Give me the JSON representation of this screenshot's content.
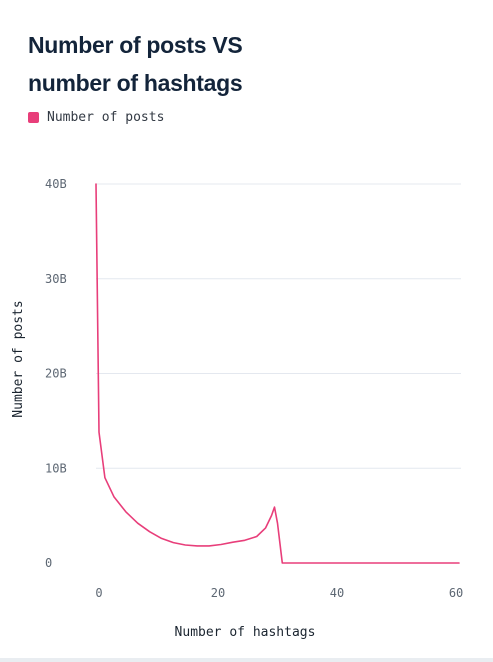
{
  "chart_data": {
    "type": "line",
    "title": "Number of posts VS number of hashtags",
    "xlabel": "Number of hashtags",
    "ylabel": "Number of posts",
    "xlim": [
      0,
      61
    ],
    "ylim": [
      0,
      40000000000
    ],
    "x_ticks": [
      {
        "value": 0,
        "label": "0"
      },
      {
        "value": 20,
        "label": "20"
      },
      {
        "value": 40,
        "label": "40"
      },
      {
        "value": 60,
        "label": "60"
      }
    ],
    "y_ticks": [
      {
        "value": 0,
        "label": "0"
      },
      {
        "value": 10000000000,
        "label": "10B"
      },
      {
        "value": 20000000000,
        "label": "20B"
      },
      {
        "value": 30000000000,
        "label": "30B"
      },
      {
        "value": 40000000000,
        "label": "40B"
      }
    ],
    "grid": true,
    "legend_position": "top-left",
    "series": [
      {
        "name": "Number of posts",
        "color": "#e83e7a",
        "points": [
          [
            0,
            40000000000
          ],
          [
            0.5,
            13800000000
          ],
          [
            1.5,
            9000000000
          ],
          [
            3,
            7000000000
          ],
          [
            5,
            5400000000
          ],
          [
            7,
            4200000000
          ],
          [
            9,
            3300000000
          ],
          [
            11,
            2600000000
          ],
          [
            13,
            2150000000
          ],
          [
            15,
            1900000000
          ],
          [
            17,
            1800000000
          ],
          [
            19,
            1800000000
          ],
          [
            21,
            1950000000
          ],
          [
            23,
            2200000000
          ],
          [
            25,
            2400000000
          ],
          [
            27,
            2800000000
          ],
          [
            28.5,
            3700000000
          ],
          [
            29.5,
            5000000000
          ],
          [
            30,
            5900000000
          ],
          [
            30.5,
            4200000000
          ],
          [
            31.3,
            0
          ],
          [
            35,
            0
          ],
          [
            40,
            0
          ],
          [
            45,
            0
          ],
          [
            50,
            0
          ],
          [
            55,
            0
          ],
          [
            60,
            0
          ],
          [
            61,
            0
          ]
        ]
      }
    ]
  },
  "colors": {
    "series": "#e83e7a",
    "grid": "#e4e8ef",
    "title": "#13243a"
  }
}
